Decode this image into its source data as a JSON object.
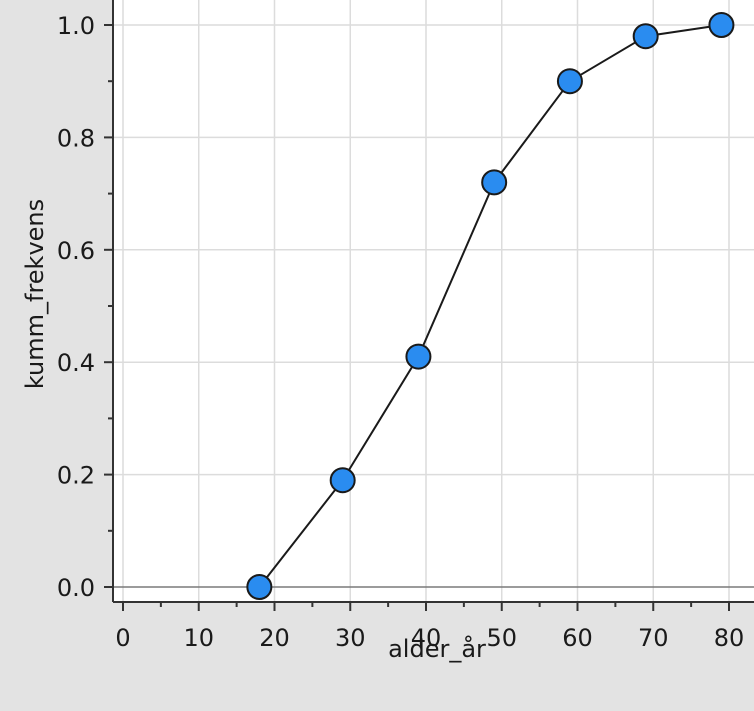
{
  "chart_data": {
    "type": "line",
    "title": "",
    "xlabel": "alder_år",
    "ylabel": "kumm_frekvens",
    "xlim": [
      -1.5,
      82
    ],
    "ylim": [
      -0.03,
      1.035
    ],
    "grid": true,
    "x_ticks": [
      0,
      10,
      20,
      30,
      40,
      50,
      60,
      70,
      80
    ],
    "x_tick_labels": [
      "0",
      "10",
      "20",
      "30",
      "40",
      "50",
      "60",
      "70",
      "80"
    ],
    "y_ticks": [
      0.0,
      0.2,
      0.4,
      0.6,
      0.8,
      1.0
    ],
    "y_tick_labels": [
      "0.0",
      "0.2",
      "0.4",
      "0.6",
      "0.8",
      "1.0"
    ],
    "series": [
      {
        "x": [
          18,
          29,
          39,
          49,
          59,
          69,
          79
        ],
        "y": [
          0.0,
          0.19,
          0.41,
          0.72,
          0.9,
          0.98,
          1.0
        ],
        "marker_color": "#2a8cf0",
        "line_color": "#1a1a1a"
      }
    ],
    "colors": {
      "background": "#e3e3e3",
      "plot_area": "#ffffff",
      "grid": "#dcdcdc",
      "axis": "#333333",
      "zero_line": "#7a7a7a"
    }
  }
}
